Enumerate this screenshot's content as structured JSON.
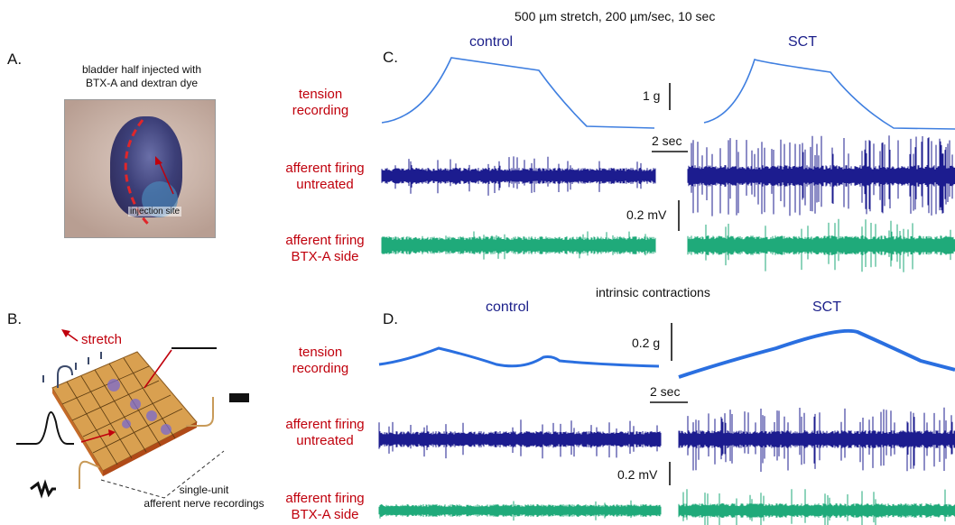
{
  "header": {
    "stretch_title": "500 µm stretch, 200 µm/sec, 10 sec",
    "intrinsic_title": "intrinsic contractions"
  },
  "panel_a": {
    "letter": "A.",
    "caption_line1": "bladder half injected with",
    "caption_line2": "BTX-A and dextran dye",
    "photo_label": "injection site"
  },
  "panel_b": {
    "letter": "B.",
    "stretch_label": "stretch",
    "caption_line1": "single-unit",
    "caption_line2": "afferent nerve recordings"
  },
  "panel_c": {
    "letter": "C.",
    "control_label": "control",
    "sct_label": "SCT",
    "row_tension": [
      "tension",
      "recording"
    ],
    "row_untreated": [
      "afferent firing",
      "untreated"
    ],
    "row_btx": [
      "afferent firing",
      "BTX-A side"
    ],
    "scale_tension": "1 g",
    "scale_time": "2 sec",
    "scale_voltage": "0.2 mV"
  },
  "panel_d": {
    "letter": "D.",
    "control_label": "control",
    "sct_label": "SCT",
    "row_tension": [
      "tension",
      "recording"
    ],
    "row_untreated": [
      "afferent firing",
      "untreated"
    ],
    "row_btx": [
      "afferent firing",
      "BTX-A side"
    ],
    "scale_tension": "0.2 g",
    "scale_time": "2 sec",
    "scale_voltage": "0.2 mV"
  },
  "colors": {
    "tension_trace": "#3f7fe0",
    "untreated_trace": "#1c1c8f",
    "btx_trace": "#1faa7a",
    "label_red": "#c0000c",
    "label_navy": "#1b1f8a"
  }
}
